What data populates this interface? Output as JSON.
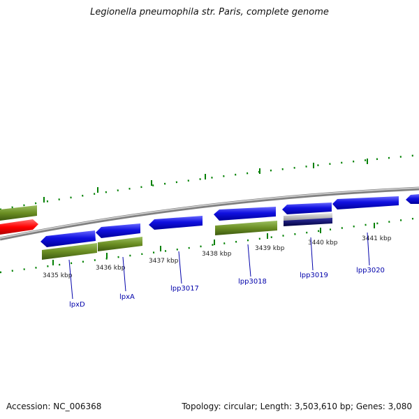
{
  "header": {
    "title": "Legionella pneumophila str. Paris, complete genome"
  },
  "footer": {
    "accession": "Accession: NC_006368",
    "summary": "Topology: circular; Length: 3,503,610 bp; Genes: 3,080"
  },
  "ruler": {
    "ticks": [
      "3435 kbp",
      "3436 kbp",
      "3437 kbp",
      "3438 kbp",
      "3439 kbp",
      "3440 kbp",
      "3441 kbp"
    ]
  },
  "genes": [
    "lpxD",
    "lpxA",
    "lpp3017",
    "lpp3018",
    "lpp3019",
    "lpp3020"
  ],
  "colors": {
    "forward_cds": "#1010e0",
    "reverse_cds": "#1010e0",
    "green_feature": "#6b8e23",
    "red_feature": "#ff0000",
    "gray_feature": "#b0b0b0",
    "navy_feature": "#000060",
    "backbone": "#808080",
    "ticks": "#008000",
    "labels": "#0000aa"
  }
}
